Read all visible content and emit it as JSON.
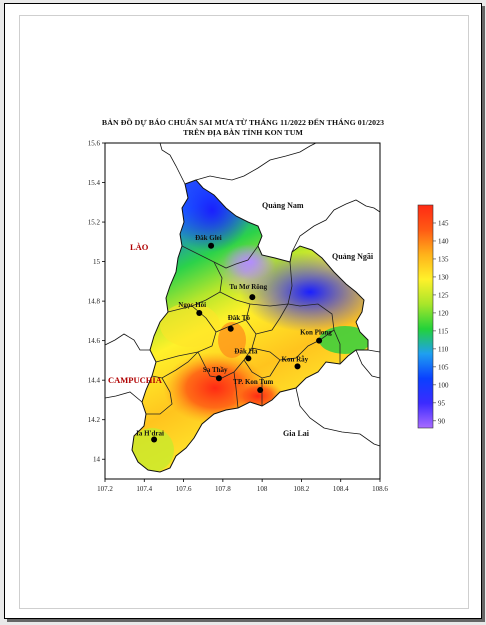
{
  "title": {
    "line1": "BẢN ĐỒ DỰ BÁO CHUẨN SAI MƯA TỪ THÁNG 11/2022 ĐẾN THÁNG 01/2023",
    "line2": "TRÊN ĐỊA BÀN TỈNH KON TUM"
  },
  "axes": {
    "x_ticks": [
      "107.2",
      "107.4",
      "107.6",
      "107.8",
      "108",
      "108.2",
      "108.4",
      "108.6"
    ],
    "x_values": [
      107.2,
      107.4,
      107.6,
      107.8,
      108.0,
      108.2,
      108.4,
      108.6
    ],
    "y_ticks": [
      "15.6",
      "15.4",
      "15.2",
      "15",
      "14.8",
      "14.6",
      "14.4",
      "14.2",
      "14"
    ],
    "y_values": [
      15.6,
      15.4,
      15.2,
      15.0,
      14.8,
      14.6,
      14.4,
      14.2,
      14.0
    ],
    "x_range": [
      107.2,
      108.6
    ],
    "y_range": [
      13.9,
      15.6
    ]
  },
  "places": [
    {
      "name": "Đăk Glei",
      "lon": 107.74,
      "lat": 15.08
    },
    {
      "name": "Tu Mơ Rông",
      "lon": 107.95,
      "lat": 14.82
    },
    {
      "name": "Ngọc Hồi",
      "lon": 107.68,
      "lat": 14.74
    },
    {
      "name": "Đăk Tô",
      "lon": 107.84,
      "lat": 14.66
    },
    {
      "name": "Kon Plong",
      "lon": 108.29,
      "lat": 14.6
    },
    {
      "name": "Đăk Hà",
      "lon": 107.93,
      "lat": 14.51
    },
    {
      "name": "Kon Rẫy",
      "lon": 108.18,
      "lat": 14.47
    },
    {
      "name": "Sa Thầy",
      "lon": 107.78,
      "lat": 14.41
    },
    {
      "name": "TP. Kon Tum",
      "lon": 107.99,
      "lat": 14.35
    },
    {
      "name": "Ia H'drai",
      "lon": 107.45,
      "lat": 14.1
    }
  ],
  "regions": {
    "quang_nam": "Quảng Nam",
    "quang_ngai": "Quảng Ngãi",
    "gia_lai": "Gia Lai",
    "lao": "LÀO",
    "campuchia": "CAMPUCHIA"
  },
  "legend": {
    "values": [
      "90",
      "95",
      "100",
      "105",
      "110",
      "115",
      "120",
      "125",
      "130",
      "135",
      "140",
      "145"
    ],
    "min": 88,
    "max": 150,
    "colors": [
      "#a86bff",
      "#3c2bff",
      "#0a40ff",
      "#1f9ff0",
      "#23d23a",
      "#a9e62a",
      "#fff12a",
      "#ffb21a",
      "#ff5a14",
      "#ff2a14"
    ]
  },
  "colors": {
    "frame": "#000000",
    "boundary": "#222222",
    "marker": "#000000"
  }
}
